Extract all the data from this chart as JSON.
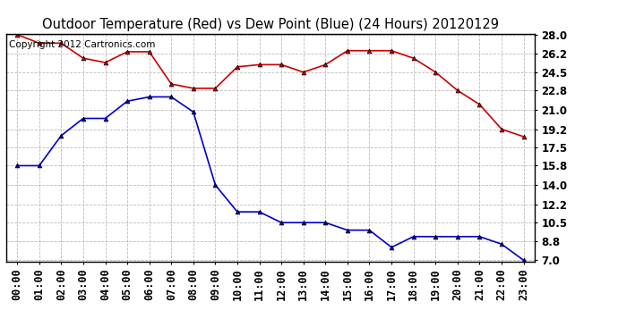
{
  "title": "Outdoor Temperature (Red) vs Dew Point (Blue) (24 Hours) 20120129",
  "copyright_text": "Copyright 2012 Cartronics.com",
  "x_labels": [
    "00:00",
    "01:00",
    "02:00",
    "03:00",
    "04:00",
    "05:00",
    "06:00",
    "07:00",
    "08:00",
    "09:00",
    "10:00",
    "11:00",
    "12:00",
    "13:00",
    "14:00",
    "15:00",
    "16:00",
    "17:00",
    "18:00",
    "19:00",
    "20:00",
    "21:00",
    "22:00",
    "23:00"
  ],
  "temp_red": [
    28.0,
    27.2,
    27.2,
    25.8,
    25.4,
    26.4,
    26.4,
    23.4,
    23.0,
    23.0,
    25.0,
    25.2,
    25.2,
    24.5,
    25.2,
    26.5,
    26.5,
    26.5,
    25.8,
    24.5,
    22.8,
    21.5,
    19.2,
    18.5
  ],
  "dew_blue": [
    15.8,
    15.8,
    18.6,
    20.2,
    20.2,
    21.8,
    22.2,
    22.2,
    20.8,
    14.0,
    11.5,
    11.5,
    10.5,
    10.5,
    10.5,
    9.8,
    9.8,
    8.2,
    9.2,
    9.2,
    9.2,
    9.2,
    8.5,
    7.0
  ],
  "y_ticks": [
    7.0,
    8.8,
    10.5,
    12.2,
    14.0,
    15.8,
    17.5,
    19.2,
    21.0,
    22.8,
    24.5,
    26.2,
    28.0
  ],
  "y_min": 7.0,
  "y_max": 28.0,
  "red_color": "#cc0000",
  "blue_color": "#0000cc",
  "marker_color": "#000000",
  "grid_color": "#bbbbbb",
  "bg_color": "#ffffff",
  "title_fontsize": 10.5,
  "copyright_fontsize": 7.5,
  "tick_fontsize": 8.5,
  "y_tick_fontsize": 8.5
}
